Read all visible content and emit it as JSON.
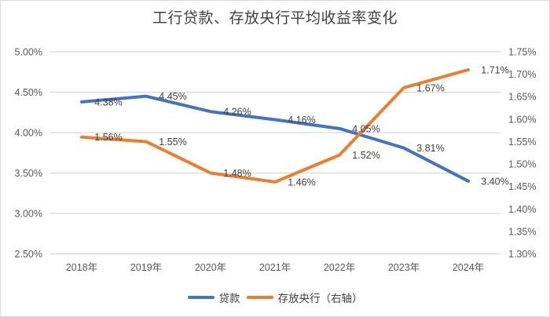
{
  "chart_data": {
    "type": "line",
    "title": "工行贷款、存放央行平均收益率变化",
    "categories": [
      "2018年",
      "2019年",
      "2020年",
      "2021年",
      "2022年",
      "2023年",
      "2024年"
    ],
    "series": [
      {
        "key": "loans",
        "name": "贷款",
        "axis": "left",
        "color": "#4472C4",
        "values": [
          4.38,
          4.45,
          4.26,
          4.16,
          4.05,
          3.81,
          3.4
        ],
        "labels": [
          "4.38%",
          "4.45%",
          "4.26%",
          "4.16%",
          "4.05%",
          "3.81%",
          "3.40%"
        ]
      },
      {
        "key": "central-bank-deposits",
        "name": "存放央行（右轴）",
        "axis": "right",
        "color": "#ED7D31",
        "values": [
          1.56,
          1.55,
          1.48,
          1.46,
          1.52,
          1.67,
          1.71
        ],
        "labels": [
          "1.56%",
          "1.55%",
          "1.48%",
          "1.46%",
          "1.52%",
          "1.67%",
          "1.71%"
        ]
      }
    ],
    "left_axis": {
      "min": 2.5,
      "max": 5.0,
      "step": 0.5,
      "tick_labels": [
        "2.50%",
        "3.00%",
        "3.50%",
        "4.00%",
        "4.50%",
        "5.00%"
      ]
    },
    "right_axis": {
      "min": 1.3,
      "max": 1.75,
      "step": 0.05,
      "tick_labels": [
        "1.30%",
        "1.35%",
        "1.40%",
        "1.45%",
        "1.50%",
        "1.55%",
        "1.60%",
        "1.65%",
        "1.70%",
        "1.75%"
      ]
    },
    "grid": true,
    "legend_position": "bottom",
    "colors": {
      "gridline": "#d9d9d9",
      "axis_text": "#595959",
      "data_label_text": "#404040"
    }
  }
}
